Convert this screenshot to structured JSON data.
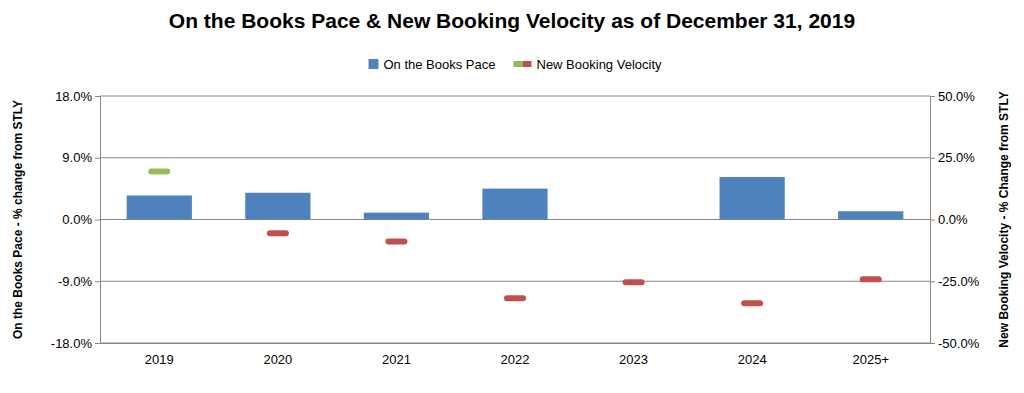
{
  "chart_data": {
    "type": "bar",
    "title": "On the Books Pace & New Booking Velocity as of December 31, 2019",
    "y_label": "On the Books Pace - % change from STLY",
    "y2_label": "New Booking Velocity - % Change from STLY",
    "categories": [
      "2019",
      "2020",
      "2021",
      "2022",
      "2023",
      "2024",
      "2025+"
    ],
    "series": [
      {
        "name": "On the Books Pace",
        "type": "bar",
        "color": "#4f81bd",
        "values": [
          3.5,
          3.9,
          1.0,
          4.5,
          0,
          6.2,
          1.2
        ]
      },
      {
        "name": "New Booking Velocity",
        "type": "scatter",
        "marker": "dash",
        "axis": "y2",
        "colors": [
          "#9bbb59",
          "#c0504d",
          "#c0504d",
          "#c0504d",
          "#c0504d",
          "#c0504d",
          "#c0504d"
        ],
        "values": [
          19.4,
          -5.6,
          -8.9,
          -31.9,
          -25.4,
          -33.9,
          -24.2
        ]
      }
    ],
    "ylim": [
      -18,
      18
    ],
    "yticks": [
      {
        "value": -18,
        "label": "-18.0%"
      },
      {
        "value": -9,
        "label": "-9.0%"
      },
      {
        "value": 0,
        "label": "0.0%"
      },
      {
        "value": 9,
        "label": "9.0%"
      },
      {
        "value": 18,
        "label": "18.0%"
      }
    ],
    "y2lim": [
      -50,
      50
    ],
    "y2ticks": [
      {
        "value": -50,
        "label": "-50.0%"
      },
      {
        "value": -25,
        "label": "-25.0%"
      },
      {
        "value": 0,
        "label": "0.0%"
      },
      {
        "value": 25,
        "label": "25.0%"
      },
      {
        "value": 50,
        "label": "50.0%"
      }
    ],
    "grid": true,
    "legend": "top"
  }
}
